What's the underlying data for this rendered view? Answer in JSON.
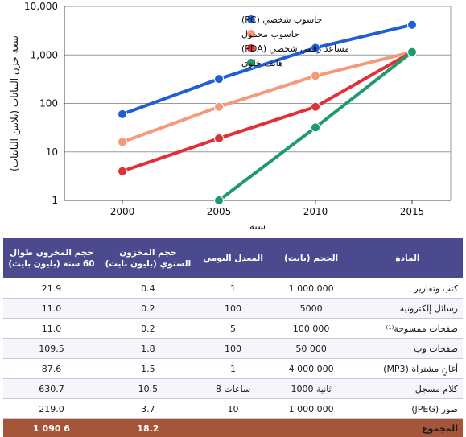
{
  "chart_data": {
    "type": "line",
    "scale": "log",
    "ylabel": "سعة خزن البيانات (بلايين البايتات)",
    "xlabel": "سنة",
    "x": [
      2000,
      2005,
      2010,
      2015
    ],
    "xticks": [
      "2000",
      "2005",
      "2010",
      "2015"
    ],
    "yticks": [
      "1",
      "10",
      "100",
      "1,000",
      "10,000"
    ],
    "ylim": [
      1,
      10000
    ],
    "xlim": [
      1997,
      2017
    ],
    "grid": "horizontal",
    "legend_position": "top-right",
    "series": [
      {
        "name": "حاسوب شخصي (PC)",
        "color": "#1f5fd6",
        "x": [
          2000,
          2005,
          2010,
          2015
        ],
        "values": [
          60,
          320,
          1400,
          4200
        ]
      },
      {
        "name": "حاسوب محمول",
        "color": "#f49a78",
        "x": [
          2000,
          2005,
          2010,
          2015
        ],
        "values": [
          16,
          85,
          370,
          1150
        ]
      },
      {
        "name": "مساعد رقمي شخصي (PDA)",
        "color": "#e0303a",
        "x": [
          2000,
          2005,
          2010,
          2015
        ],
        "values": [
          4,
          19,
          85,
          1150
        ]
      },
      {
        "name": "هاتف خلوي",
        "color": "#1f9a6a",
        "x": [
          2005,
          2010,
          2015
        ],
        "values": [
          1,
          32,
          1150
        ]
      }
    ]
  },
  "table": {
    "headers": {
      "item": "المادة",
      "size": "الحجم (بايت)",
      "rate": "المعدل اليومي",
      "annual": "حجم المخزون السنوي (بليون بايت)",
      "total": "حجم المخزون طوال 60 سنة (بليون بايت)"
    },
    "rows": [
      {
        "item": "كتب وتقارير",
        "size": "1 000 000",
        "rate": "1",
        "annual": "0.4",
        "total": "21.9"
      },
      {
        "item": "رسائل إلكترونية",
        "size": "5000",
        "rate": "100",
        "annual": "0.2",
        "total": "11.0"
      },
      {
        "item": "صفحات ممسوحة⁽¹⁾",
        "size": "100 000",
        "rate": "5",
        "annual": "0.2",
        "total": "11.0"
      },
      {
        "item": "صفحات وب",
        "size": "50 000",
        "rate": "100",
        "annual": "1.8",
        "total": "109.5"
      },
      {
        "item": "أغانٍ مشتراة (MP3)",
        "size": "4 000 000",
        "rate": "1",
        "annual": "1.5",
        "total": "87.6"
      },
      {
        "item": "كلام مسجل",
        "size": "1000 ثانية",
        "rate": "8 ساعات",
        "annual": "10.5",
        "total": "630.7"
      },
      {
        "item": "صور (JPEG)",
        "size": "1 000 000",
        "rate": "10",
        "annual": "3.7",
        "total": "219.0"
      }
    ],
    "footer": {
      "item": "المجموع",
      "annual": "18.2",
      "total": "1 090 6"
    }
  },
  "colors": {
    "table_header": "#4b4a8e",
    "table_footer": "#a4553a",
    "grid": "#9a9a9a"
  }
}
